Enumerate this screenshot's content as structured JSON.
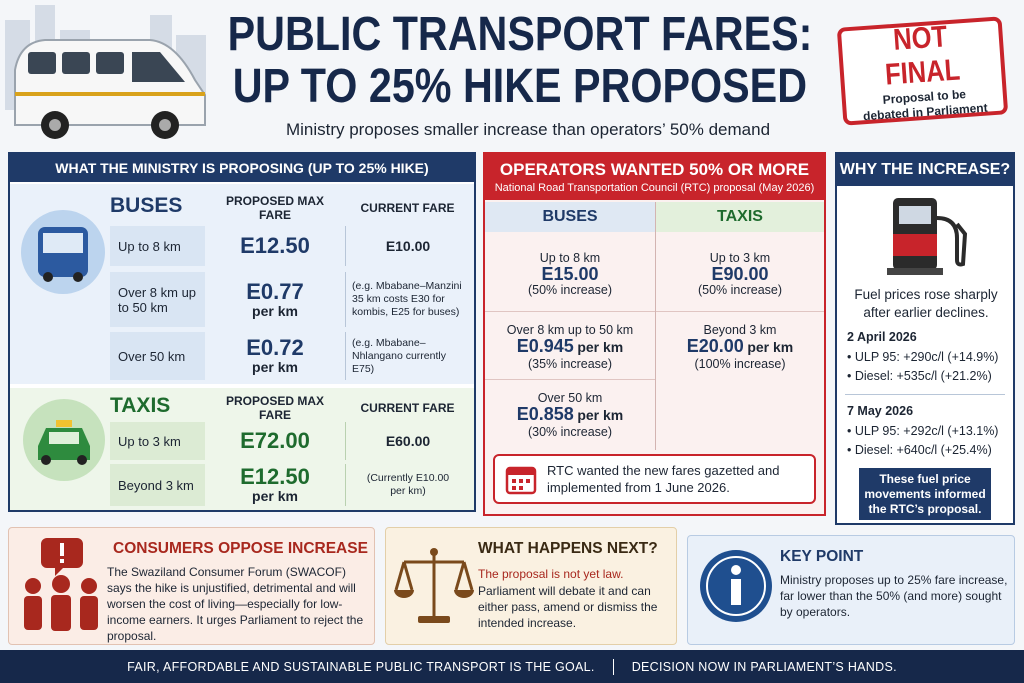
{
  "header": {
    "title_line1": "PUBLIC TRANSPORT FARES:",
    "title_line2": "UP TO 25% HIKE PROPOSED",
    "subtitle": "Ministry proposes smaller increase than operators’ 50% demand"
  },
  "stamp": {
    "title": "NOT FINAL",
    "text": "Proposal to be debated in Parliament"
  },
  "ministry": {
    "heading": "WHAT THE MINISTRY IS PROPOSING  (UP TO 25% HIKE)",
    "buses": {
      "label": "BUSES",
      "col_fare": "PROPOSED MAX FARE",
      "col_current": "CURRENT FARE",
      "rows": [
        {
          "distance": "Up to 8 km",
          "fare": "E12.50",
          "current": "E10.00"
        },
        {
          "distance": "Over 8 km up to 50 km",
          "fare": "E0.77",
          "unit": "per km",
          "current": "(e.g. Mbabane–Manzini 35 km costs E30 for kombis, E25 for buses)"
        },
        {
          "distance": "Over 50 km",
          "fare": "E0.72",
          "unit": "per km",
          "current": "(e.g. Mbabane–Nhlangano currently E75)"
        }
      ]
    },
    "taxis": {
      "label": "TAXIS",
      "col_fare": "PROPOSED MAX FARE",
      "col_current": "CURRENT FARE",
      "rows": [
        {
          "distance": "Up to 3 km",
          "fare": "E72.00",
          "current": "E60.00"
        },
        {
          "distance": "Beyond 3 km",
          "fare": "E12.50",
          "unit": "per km",
          "current": "(Currently E10.00 per km)"
        }
      ]
    }
  },
  "operators": {
    "heading": "OPERATORS WANTED 50% OR MORE",
    "subheading": "National Road Transportation Council (RTC) proposal (May 2026)",
    "buses_label": "BUSES",
    "taxis_label": "TAXIS",
    "buses": [
      {
        "distance": "Up to 8 km",
        "fare": "E15.00",
        "note": "(50% increase)"
      },
      {
        "distance": "Over 8 km up to 50 km",
        "fare": "E0.945",
        "unit": "per km",
        "note": "(35% increase)"
      },
      {
        "distance": "Over 50 km",
        "fare": "E0.858",
        "unit": "per km",
        "note": "(30% increase)"
      }
    ],
    "taxis": [
      {
        "distance": "Up to 3 km",
        "fare": "E90.00",
        "note": "(50% increase)"
      },
      {
        "distance": "Beyond 3 km",
        "fare": "E20.00",
        "unit": "per km",
        "note": "(100% increase)"
      }
    ],
    "note": "RTC wanted the new fares gazetted and implemented from 1 June 2026."
  },
  "why": {
    "heading": "WHY THE INCREASE?",
    "intro": "Fuel prices rose sharply after earlier declines.",
    "dates": [
      {
        "date": "2 April 2026",
        "items": [
          "ULP 95: +290c/l (+14.9%)",
          "Diesel: +535c/l (+21.2%)"
        ]
      },
      {
        "date": "7 May 2026",
        "items": [
          "ULP 95: +292c/l (+13.1%)",
          "Diesel: +640c/l (+25.4%)"
        ]
      }
    ],
    "footer": "These fuel price movements informed the RTC’s proposal."
  },
  "consumers": {
    "title": "CONSUMERS OPPOSE INCREASE",
    "text": "The Swaziland Consumer Forum (SWACOF) says the hike is unjustified, detrimental and will worsen the cost of living—especially for low-income earners. It urges Parliament to reject the proposal."
  },
  "next": {
    "title": "WHAT HAPPENS NEXT?",
    "highlight": "The proposal is not yet law.",
    "text": "Parliament will debate it and can either pass, amend or dismiss the intended increase."
  },
  "key": {
    "title": "KEY POINT",
    "text": "Ministry proposes up to 25% fare increase, far lower than the 50% (and more) sought by operators."
  },
  "footer": {
    "left": "FAIR, AFFORDABLE AND SUSTAINABLE PUBLIC TRANSPORT IS THE GOAL.",
    "right": "DECISION NOW IN PARLIAMENT’S HANDS."
  }
}
